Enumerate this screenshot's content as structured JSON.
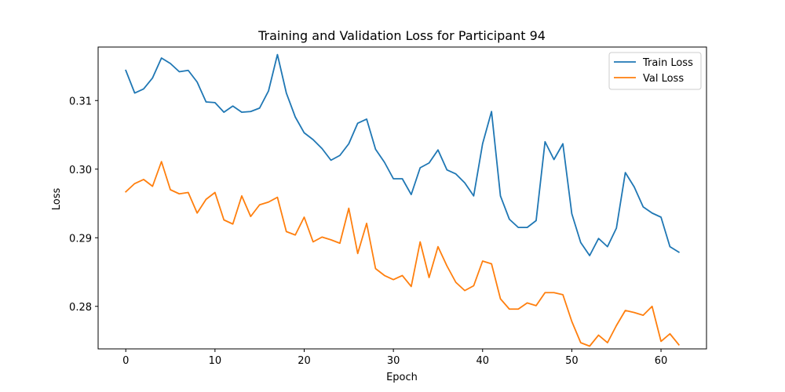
{
  "chart_data": {
    "type": "line",
    "title": "Training and Validation Loss for Participant 94",
    "xlabel": "Epoch",
    "ylabel": "Loss",
    "xlim": [
      -3.1,
      65.1
    ],
    "ylim": [
      0.2738,
      0.3178
    ],
    "xticks": [
      0,
      10,
      20,
      30,
      40,
      50,
      60
    ],
    "yticks": [
      0.28,
      0.29,
      0.3,
      0.31
    ],
    "ytick_labels": [
      "0.28",
      "0.29",
      "0.30",
      "0.31"
    ],
    "xtick_labels": [
      "0",
      "10",
      "20",
      "30",
      "40",
      "50",
      "60"
    ],
    "grid": false,
    "legend_position": "top-right",
    "x": [
      0,
      1,
      2,
      3,
      4,
      5,
      6,
      7,
      8,
      9,
      10,
      11,
      12,
      13,
      14,
      15,
      16,
      17,
      18,
      19,
      20,
      21,
      22,
      23,
      24,
      25,
      26,
      27,
      28,
      29,
      30,
      31,
      32,
      33,
      34,
      35,
      36,
      37,
      38,
      39,
      40,
      41,
      42,
      43,
      44,
      45,
      46,
      47,
      48,
      49,
      50,
      51,
      52,
      53,
      54,
      55,
      56,
      57,
      58,
      59,
      60,
      61,
      62
    ],
    "series": [
      {
        "name": "Train Loss",
        "color": "#1f77b4",
        "values": [
          0.3144,
          0.3111,
          0.3117,
          0.3133,
          0.3162,
          0.3154,
          0.3142,
          0.3144,
          0.3127,
          0.3098,
          0.3097,
          0.3083,
          0.3092,
          0.3083,
          0.3084,
          0.3089,
          0.3114,
          0.3167,
          0.3111,
          0.3076,
          0.3053,
          0.3043,
          0.303,
          0.3013,
          0.302,
          0.3037,
          0.3067,
          0.3073,
          0.3029,
          0.301,
          0.2986,
          0.2986,
          0.2963,
          0.3002,
          0.3009,
          0.3028,
          0.2999,
          0.2993,
          0.298,
          0.2961,
          0.3037,
          0.3084,
          0.2961,
          0.2927,
          0.2915,
          0.2915,
          0.2925,
          0.304,
          0.3014,
          0.3037,
          0.2935,
          0.2893,
          0.2874,
          0.2899,
          0.2887,
          0.2914,
          0.2995,
          0.2974,
          0.2945,
          0.2936,
          0.293,
          0.2887,
          0.2879
        ]
      },
      {
        "name": "Val Loss",
        "color": "#ff7f0e",
        "values": [
          0.2967,
          0.2979,
          0.2985,
          0.2975,
          0.3011,
          0.297,
          0.2964,
          0.2966,
          0.2936,
          0.2956,
          0.2966,
          0.2926,
          0.292,
          0.2961,
          0.2931,
          0.2948,
          0.2952,
          0.2959,
          0.2909,
          0.2904,
          0.293,
          0.2894,
          0.2901,
          0.2897,
          0.2892,
          0.2943,
          0.2877,
          0.2921,
          0.2855,
          0.2845,
          0.2839,
          0.2845,
          0.2829,
          0.2894,
          0.2842,
          0.2887,
          0.2859,
          0.2835,
          0.2823,
          0.283,
          0.2866,
          0.2862,
          0.2811,
          0.2796,
          0.2796,
          0.2805,
          0.2801,
          0.282,
          0.282,
          0.2817,
          0.2778,
          0.2747,
          0.2742,
          0.2758,
          0.2747,
          0.2772,
          0.2794,
          0.2791,
          0.2787,
          0.28,
          0.2749,
          0.276,
          0.2744
        ]
      }
    ]
  }
}
